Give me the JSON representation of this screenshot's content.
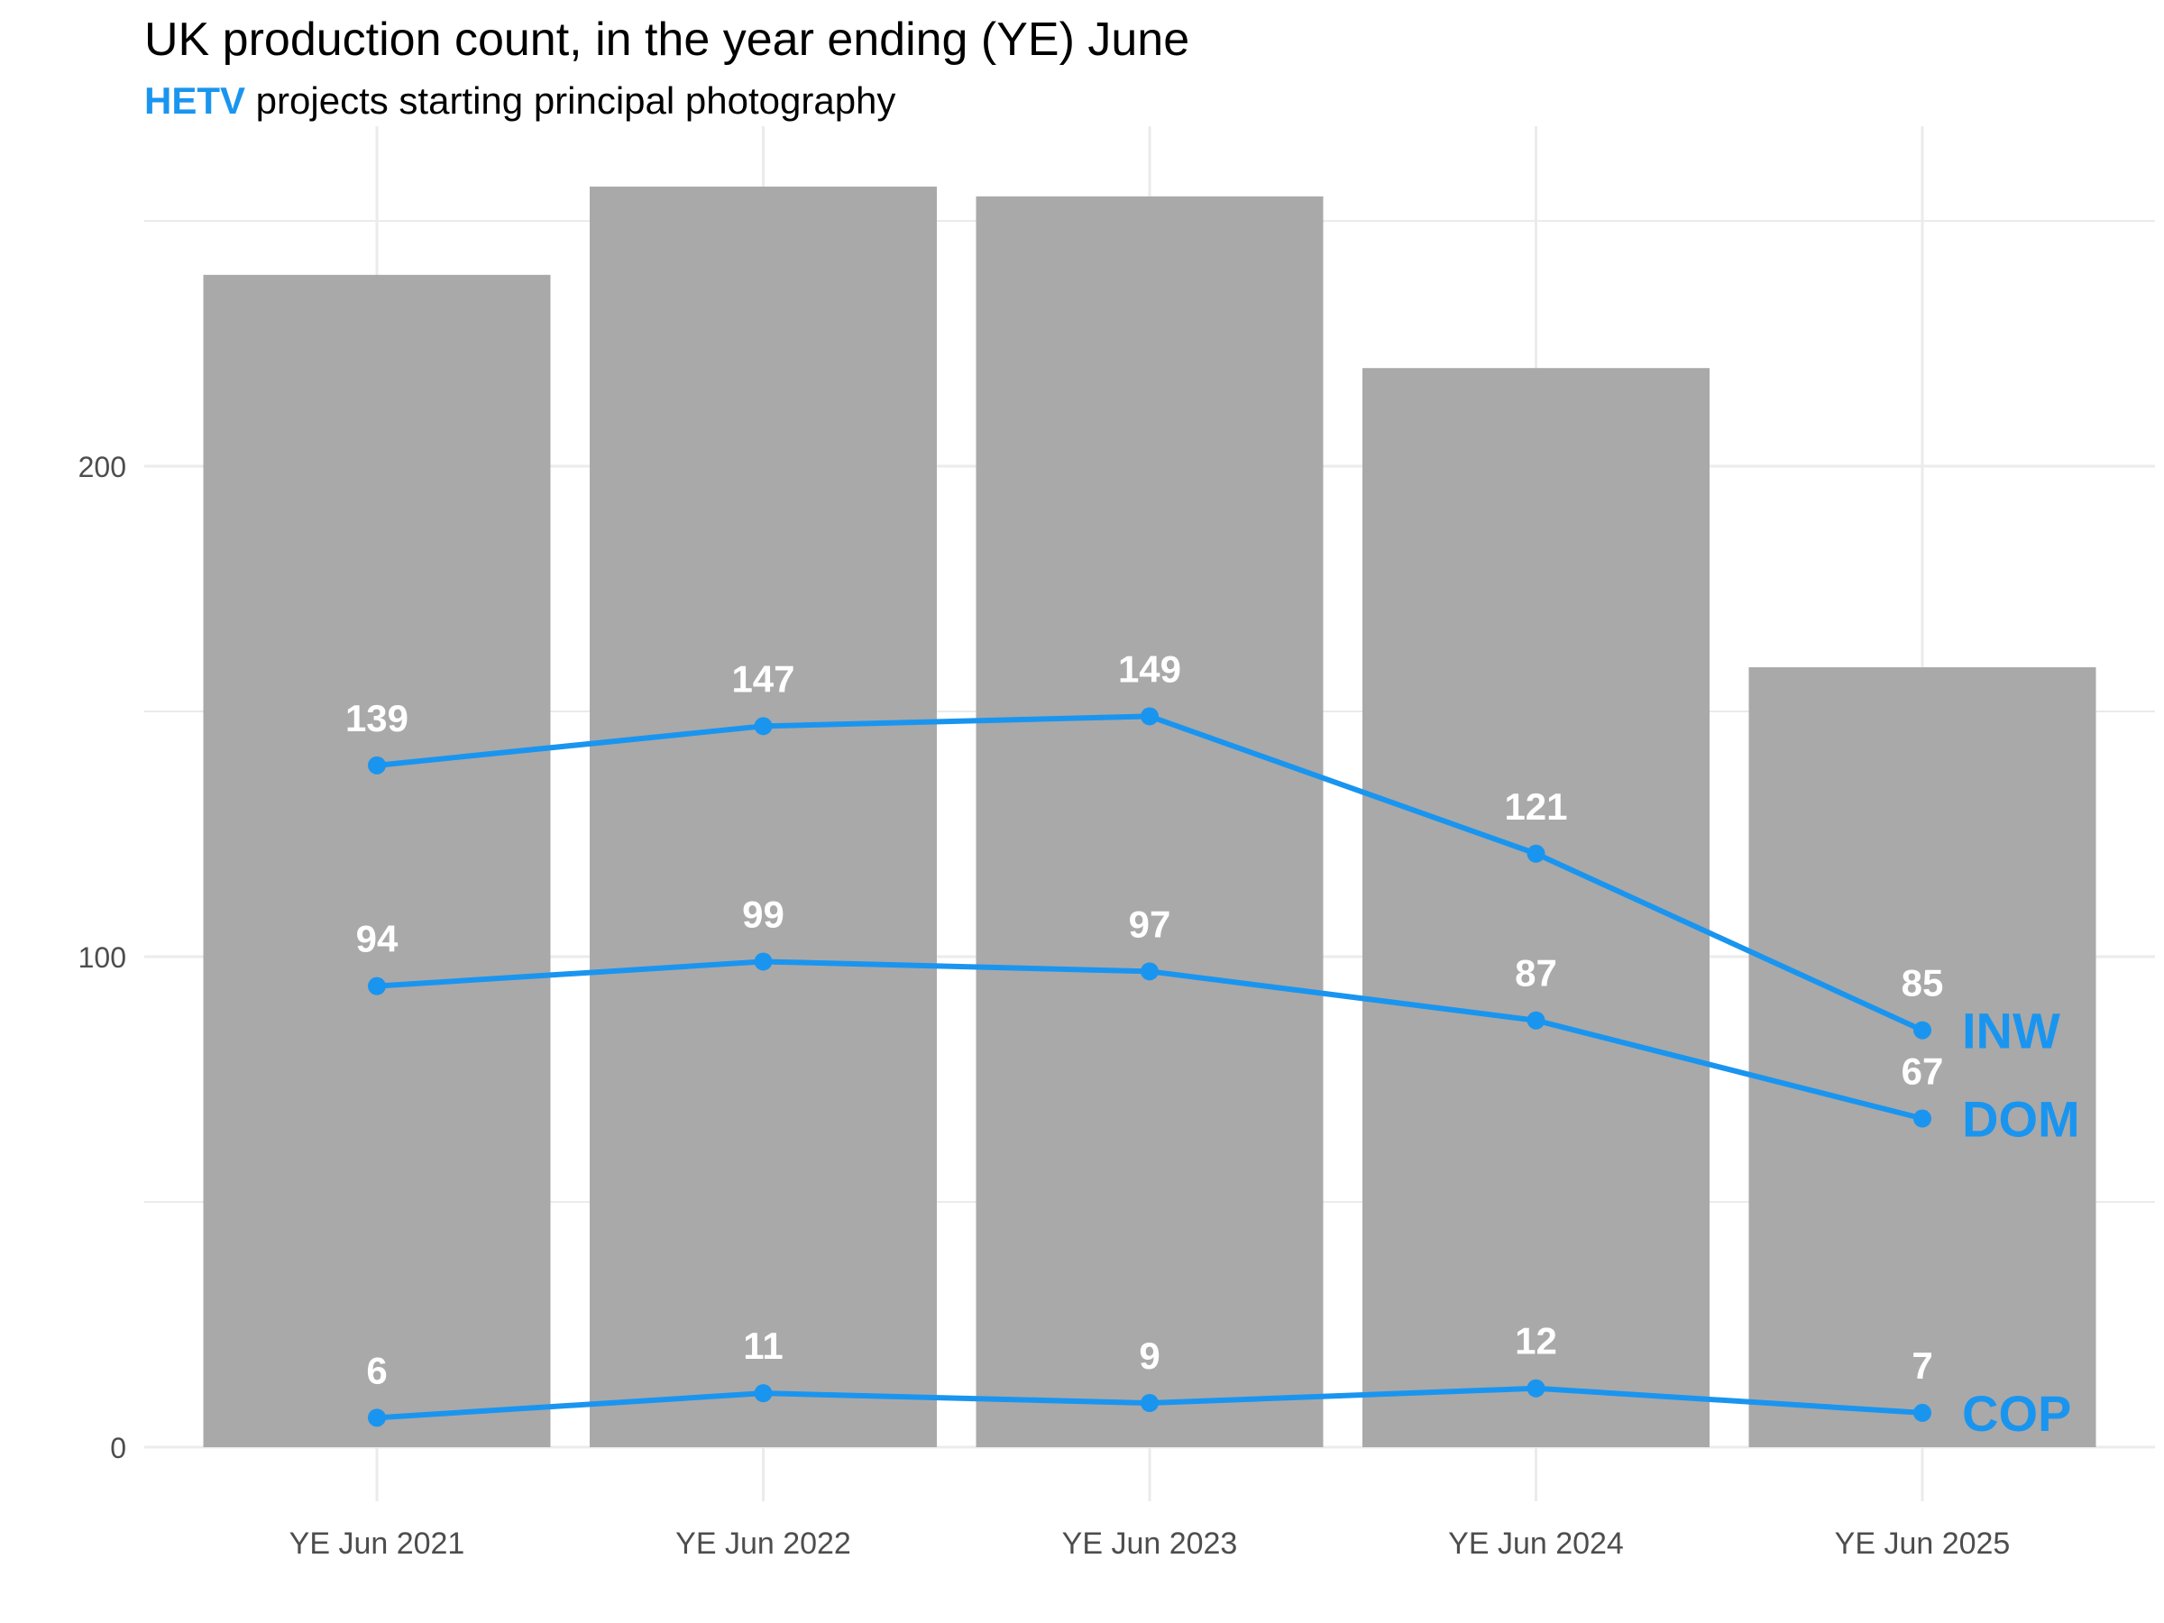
{
  "chart_data": {
    "type": "bar",
    "title": "UK production count, in the year ending (YE) June",
    "subtitle_highlight": "HETV",
    "subtitle_rest": " projects starting principal photography",
    "categories": [
      "YE Jun 2021",
      "YE Jun 2022",
      "YE Jun 2023",
      "YE Jun 2024",
      "YE Jun 2025"
    ],
    "bar_values": [
      239,
      257,
      255,
      220,
      159
    ],
    "y_ticks": [
      0,
      100,
      200
    ],
    "ylim": [
      0,
      268
    ],
    "grid": true,
    "series": [
      {
        "name": "INW",
        "values": [
          139,
          147,
          149,
          121,
          85
        ]
      },
      {
        "name": "DOM",
        "values": [
          94,
          99,
          97,
          87,
          67
        ]
      },
      {
        "name": "COP",
        "values": [
          6,
          11,
          9,
          12,
          7
        ]
      }
    ],
    "colors": {
      "bar": "#a9a9a9",
      "line": "#1a95ef",
      "value_label": "#ffffff",
      "grid": "#ebebeb",
      "tick_label": "#4d4d4d",
      "title": "#000000"
    }
  }
}
